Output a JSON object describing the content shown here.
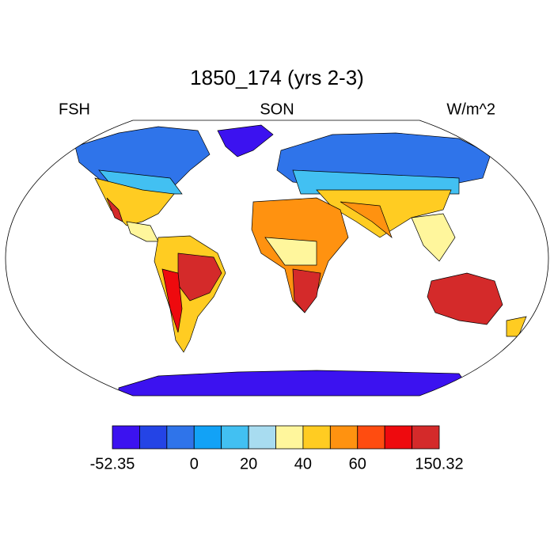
{
  "title": "1850_174 (yrs 2-3)",
  "left_label": "FSH",
  "center_label": "SON",
  "right_label": "W/m^2",
  "colorbar": {
    "colors": [
      "#3c12f0",
      "#2444e6",
      "#2f74ea",
      "#12a2f6",
      "#42c0f2",
      "#a8dcf0",
      "#fff69c",
      "#ffcc22",
      "#ff9210",
      "#ff4c10",
      "#ee0a0e",
      "#d42a2a"
    ],
    "min": -52.35,
    "max": 150.32,
    "levels": [
      -20,
      -10,
      0,
      10,
      20,
      30,
      40,
      50,
      60,
      70,
      80
    ],
    "ticks": [
      0,
      20,
      40,
      60
    ]
  }
}
